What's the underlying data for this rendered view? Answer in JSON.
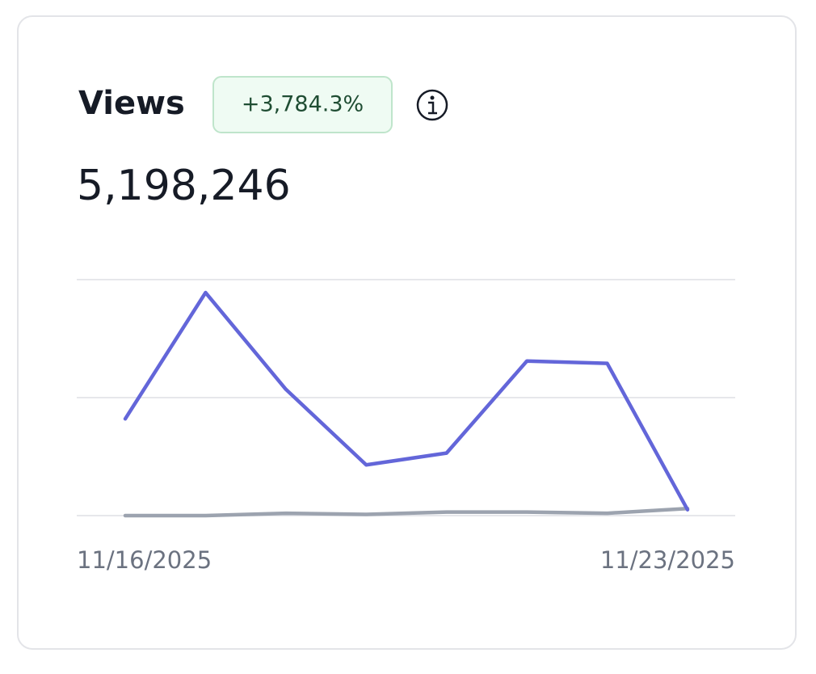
{
  "chart_data": {
    "type": "line",
    "title": "Views",
    "change": "+3,784.3%",
    "total": "5,198,246",
    "categories": [
      "11/16/2025",
      null,
      null,
      null,
      null,
      null,
      null,
      "11/23/2025"
    ],
    "series": [
      {
        "color": "#6366d9",
        "values": [
          0.82,
          1.89,
          1.07,
          0.43,
          0.53,
          1.31,
          1.29,
          0.05
        ]
      },
      {
        "color": "#9ca3af",
        "values": [
          0,
          0,
          0.02,
          0.01,
          0.03,
          0.03,
          0.02,
          0.06
        ]
      }
    ],
    "ylim": [
      0,
      2
    ],
    "yticks": [
      0,
      1,
      2
    ],
    "grid": true
  }
}
